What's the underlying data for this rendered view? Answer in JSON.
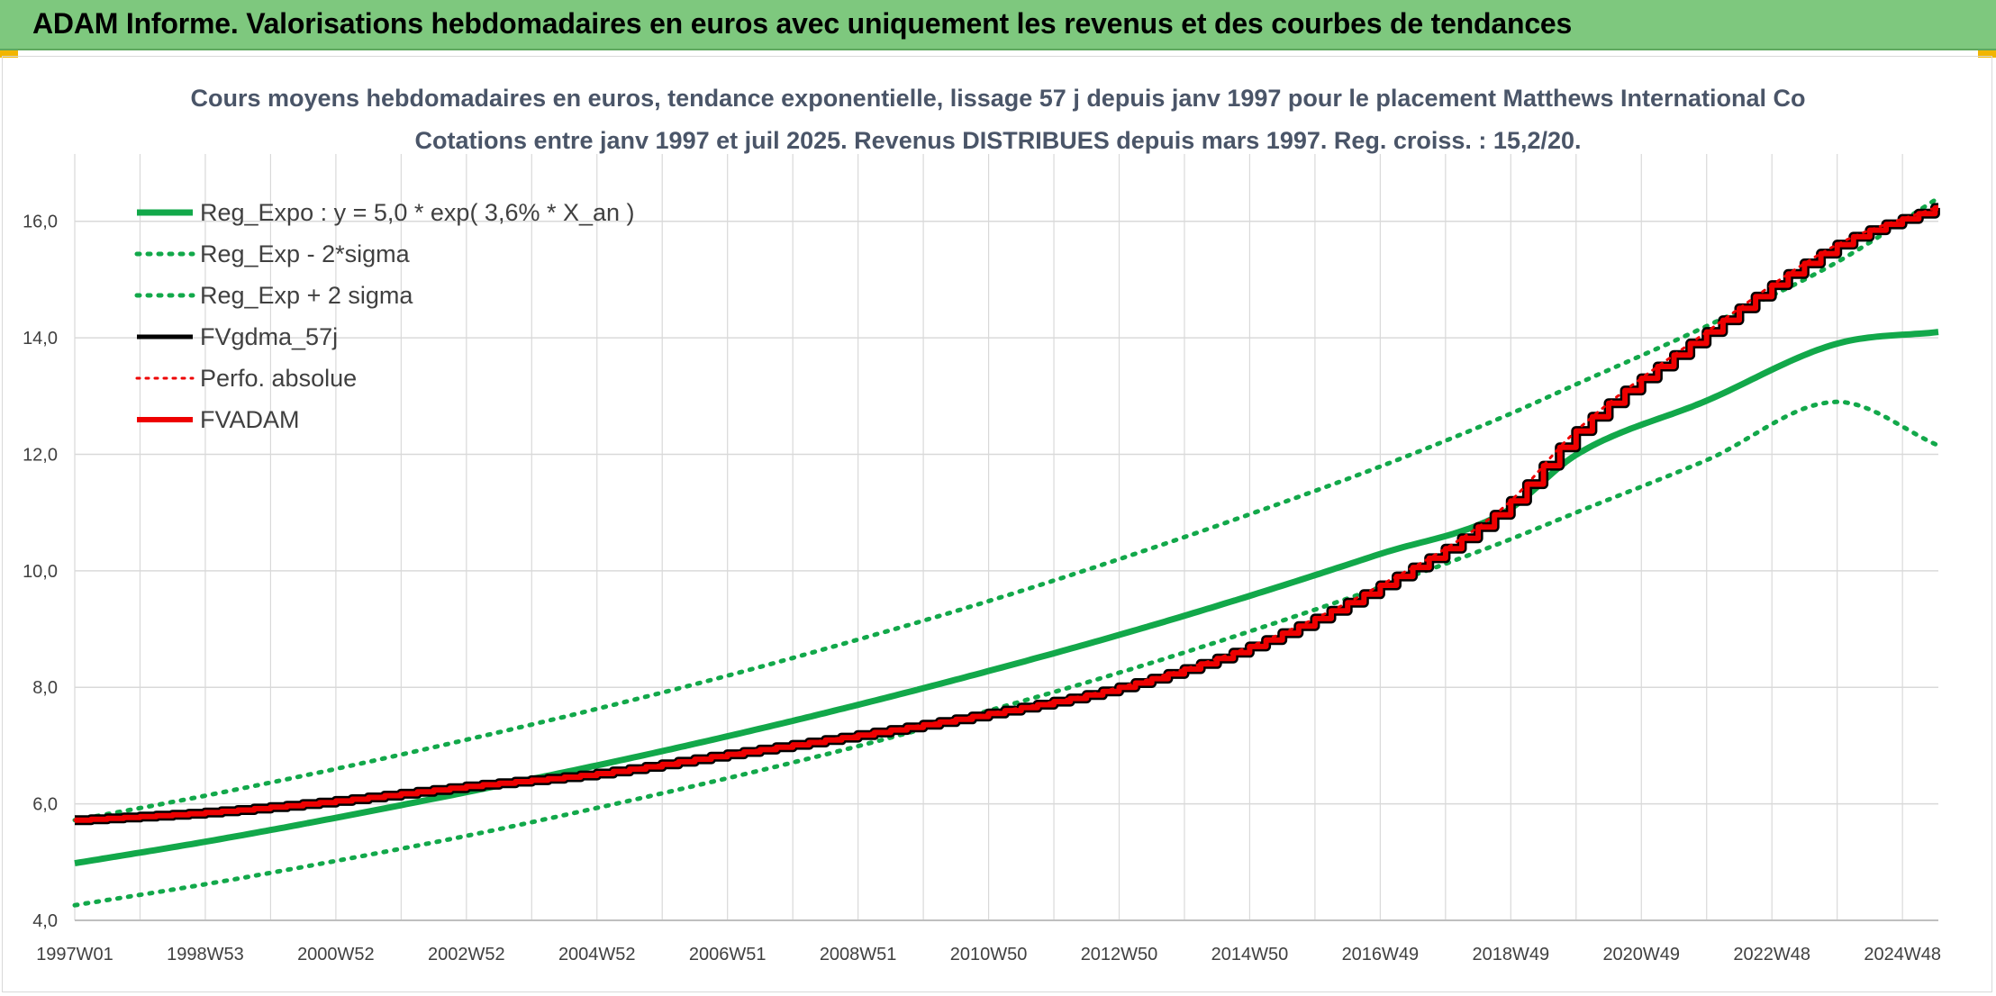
{
  "header": {
    "title": "ADAM Informe. Valorisations hebdomadaires en euros avec uniquement les revenus et des courbes de tendances"
  },
  "colors": {
    "header_bg": "#7ec87e",
    "green": "#12a84a",
    "red": "#ee0000",
    "black": "#000000",
    "grid": "#d9d9d9"
  },
  "chart_data": {
    "type": "line",
    "title": "Cours moyens hebdomadaires en euros, tendance exponentielle, lissage 57 j depuis janv 1997 pour le placement Matthews International Co",
    "subtitle": "Cotations entre janv 1997 et juil 2025. Revenus DISTRIBUES depuis mars 1997. Reg. croiss. : 15,2/20.",
    "xlabel": "",
    "ylabel": "",
    "x_range": [
      "1997W01",
      "2025W30"
    ],
    "x_tick_labels": [
      "1997W01",
      "1998W53",
      "2000W52",
      "2002W52",
      "2004W52",
      "2006W51",
      "2008W51",
      "2010W50",
      "2012W50",
      "2014W50",
      "2016W49",
      "2018W49",
      "2020W49",
      "2022W48",
      "2024W48"
    ],
    "ylim": [
      4.0,
      17.0
    ],
    "y_ticks": [
      "4,0",
      "6,0",
      "8,0",
      "10,0",
      "12,0",
      "14,0",
      "16,0"
    ],
    "grid": true,
    "legend_position": "top-left",
    "x_years": [
      1997.0,
      1999.0,
      2001.0,
      2003.0,
      2005.0,
      2007.0,
      2009.0,
      2011.0,
      2013.0,
      2015.0,
      2017.0,
      2018.9,
      2020.0,
      2022.0,
      2024.0,
      2025.55
    ],
    "series": [
      {
        "name": "Reg_Expo : y = 5,0 * exp( 3,6% *  X_an )",
        "style": "solid",
        "color": "#12a84a",
        "values": [
          4.98,
          5.35,
          5.76,
          6.2,
          6.66,
          7.16,
          7.7,
          8.28,
          8.9,
          9.57,
          10.29,
          11.0,
          11.99,
          12.92,
          13.9,
          14.1
        ]
      },
      {
        "name": "Reg_Exp - 2*sigma",
        "style": "dotted",
        "color": "#12a84a",
        "values": [
          4.26,
          4.62,
          5.02,
          5.45,
          5.93,
          6.44,
          6.99,
          7.6,
          8.25,
          8.96,
          9.72,
          10.5,
          11.0,
          11.9,
          12.9,
          12.15
        ]
      },
      {
        "name": "Reg_Exp + 2 sigma",
        "style": "dotted",
        "color": "#12a84a",
        "values": [
          5.72,
          6.14,
          6.6,
          7.1,
          7.63,
          8.2,
          8.82,
          9.48,
          10.2,
          10.97,
          11.79,
          12.65,
          13.2,
          14.2,
          15.3,
          16.4
        ]
      },
      {
        "name": "FVgdma_57j",
        "style": "solid",
        "color": "#000000",
        "values": [
          5.72,
          5.85,
          6.05,
          6.3,
          6.52,
          6.85,
          7.18,
          7.55,
          8.0,
          8.7,
          9.75,
          11.1,
          12.4,
          14.1,
          15.6,
          16.25
        ]
      },
      {
        "name": "Perfo. absolue",
        "style": "dotted",
        "color": "#ee0000",
        "values": [
          5.72,
          5.85,
          6.05,
          6.3,
          6.52,
          6.85,
          7.18,
          7.55,
          8.0,
          8.7,
          9.75,
          11.1,
          12.4,
          14.1,
          15.6,
          16.25
        ]
      },
      {
        "name": "FVADAM",
        "style": "solid",
        "color": "#ee0000",
        "values": [
          5.72,
          5.85,
          6.05,
          6.3,
          6.52,
          6.85,
          7.18,
          7.55,
          8.0,
          8.7,
          9.75,
          11.1,
          12.4,
          14.1,
          15.6,
          16.25
        ]
      }
    ]
  }
}
